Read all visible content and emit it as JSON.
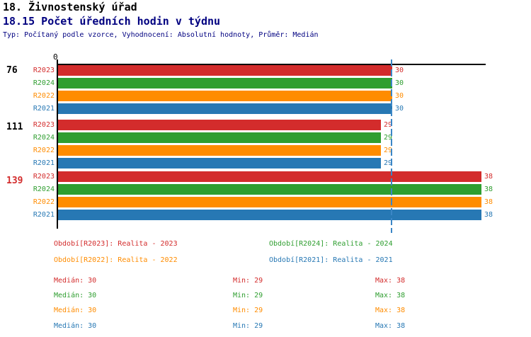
{
  "header": {
    "title": "18. Živnostenský úřad",
    "subtitle": "18.15 Počet úředních hodin v týdnu",
    "meta": "Typ: Počítaný podle vzorce, Vyhodnocení: Absolutní hodnoty, Průměr: Medián"
  },
  "chart_data": {
    "type": "bar",
    "orientation": "horizontal",
    "title": "18.15 Počet úředních hodin v týdnu",
    "x_axis": {
      "origin_tick_label": "0",
      "xmax": 38.35
    },
    "grid": false,
    "median_line_value": 30,
    "median_line_color": "#3b86c6",
    "series": [
      {
        "name": "R2023",
        "color": "#d32c2c"
      },
      {
        "name": "R2024",
        "color": "#2f9e30"
      },
      {
        "name": "R2022",
        "color": "#ff8c00"
      },
      {
        "name": "R2021",
        "color": "#2778b4"
      }
    ],
    "groups": [
      {
        "label": "76",
        "label_color": "#000000",
        "values": [
          30,
          30,
          30,
          30
        ]
      },
      {
        "label": "111",
        "label_color": "#000000",
        "values": [
          29,
          29,
          29,
          29
        ]
      },
      {
        "label": "139",
        "label_color": "#d32c2c",
        "values": [
          38,
          38,
          38,
          38
        ]
      }
    ]
  },
  "legend": {
    "items": [
      {
        "text": "Období[R2023]: Realita - 2023",
        "color": "#d32c2c"
      },
      {
        "text": "Období[R2024]: Realita - 2024",
        "color": "#2f9e30"
      },
      {
        "text": "Období[R2022]: Realita - 2022",
        "color": "#ff8c00"
      },
      {
        "text": "Období[R2021]: Realita - 2021",
        "color": "#2778b4"
      }
    ]
  },
  "stats": {
    "rows": [
      {
        "median": "Medián: 30",
        "min": "Min: 29",
        "max": "Max: 38",
        "color": "#d32c2c"
      },
      {
        "median": "Medián: 30",
        "min": "Min: 29",
        "max": "Max: 38",
        "color": "#2f9e30"
      },
      {
        "median": "Medián: 30",
        "min": "Min: 29",
        "max": "Max: 38",
        "color": "#ff8c00"
      },
      {
        "median": "Medián: 30",
        "min": "Min: 29",
        "max": "Max: 38",
        "color": "#2778b4"
      }
    ]
  }
}
